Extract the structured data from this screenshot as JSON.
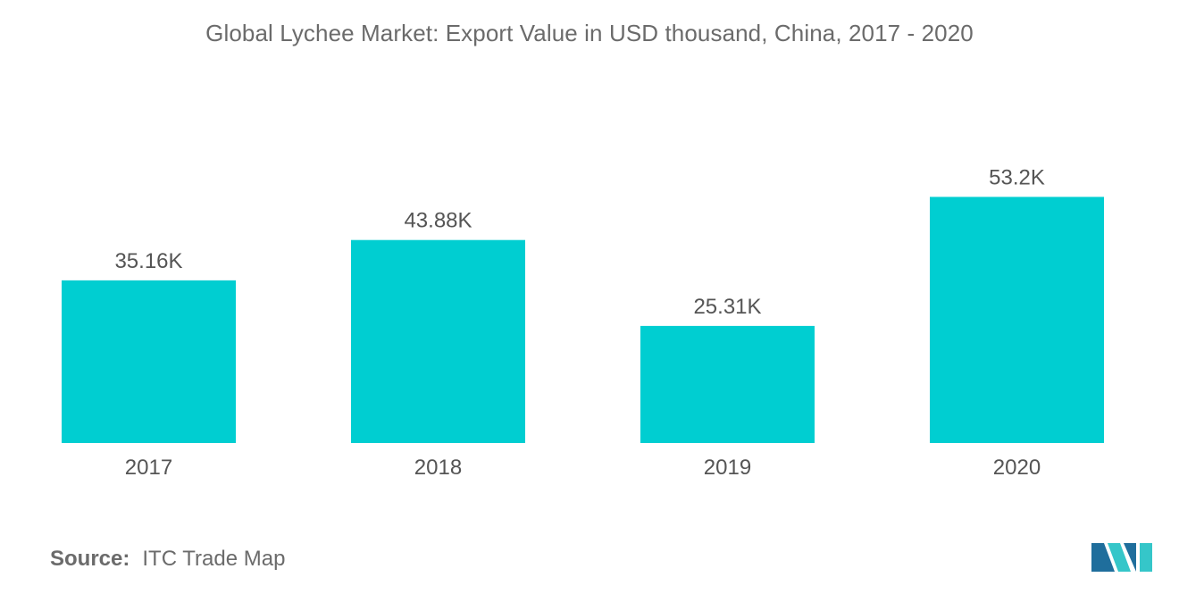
{
  "colors": {
    "bar": "#00ced1",
    "text": "#555555",
    "title": "#6b6b6b",
    "logo_dark": "#1f6e9c",
    "logo_light": "#35c6c9"
  },
  "chart_data": {
    "type": "bar",
    "title": "Global Lychee Market: Export Value in USD thousand, China, 2017 - 2020",
    "categories": [
      "2017",
      "2018",
      "2019",
      "2020"
    ],
    "values": [
      35.16,
      43.88,
      25.31,
      53.2
    ],
    "value_labels": [
      "35.16K",
      "43.88K",
      "25.31K",
      "53.2K"
    ],
    "unit": "USD thousand",
    "ylim": [
      0,
      60
    ],
    "grid": false,
    "legend": "none"
  },
  "source": {
    "label": "Source:",
    "text": "ITC Trade Map"
  },
  "logo": {
    "icon": "mordor-intelligence-logo-icon"
  }
}
